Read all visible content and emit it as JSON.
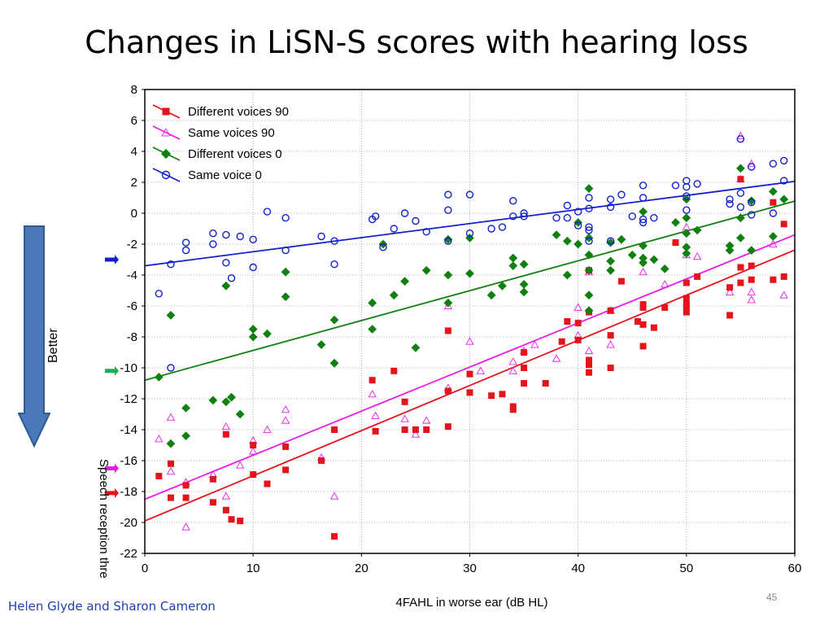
{
  "slide": {
    "title": "Changes in LiSN-S scores with hearing loss",
    "better_label": "Better",
    "authors": "Helen Glyde and Sharon Cameron",
    "slide_number": "45"
  },
  "colors": {
    "different_voices_90": "#e3141c",
    "same_voices_90": "#e81ee8",
    "different_voices_0": "#108010",
    "same_voice_0": "#1020d0",
    "better_arrow": "#4a78b8"
  },
  "side_markers": [
    {
      "name": "same-voice-0-marker",
      "y": -3,
      "color": "#1020d0"
    },
    {
      "name": "different-voices-0-marker",
      "y": -10.2,
      "color": "#22aa55"
    },
    {
      "name": "same-voices-90-marker",
      "y": -16.5,
      "color": "#e81ee8"
    },
    {
      "name": "different-voices-90-marker",
      "y": -18.1,
      "color": "#e3141c"
    }
  ],
  "chart_data": {
    "type": "scatter",
    "xlabel": "4FAHL in worse ear (dB HL)",
    "ylabel": "Speech reception thre",
    "xlim": [
      0,
      60
    ],
    "ylim": [
      -22,
      8
    ],
    "xticks": [
      0,
      10,
      20,
      30,
      40,
      50,
      60
    ],
    "yticks": [
      8,
      6,
      4,
      2,
      0,
      -2,
      -4,
      -6,
      -8,
      -10,
      -12,
      -14,
      -16,
      -18,
      -20,
      -22
    ],
    "grid": true,
    "legend_position": "top-left",
    "series": [
      {
        "name": "Different voices 90",
        "marker": "square",
        "fit": [
          -19.9,
          0.292
        ],
        "points": [
          [
            1.3,
            -17.0
          ],
          [
            2.4,
            -18.4
          ],
          [
            2.4,
            -16.2
          ],
          [
            3.8,
            -17.6
          ],
          [
            3.8,
            -18.4
          ],
          [
            6.3,
            -17.2
          ],
          [
            6.3,
            -18.7
          ],
          [
            7.5,
            -14.3
          ],
          [
            7.5,
            -19.2
          ],
          [
            8.0,
            -19.8
          ],
          [
            8.8,
            -19.9
          ],
          [
            10.0,
            -15.0
          ],
          [
            10.0,
            -16.9
          ],
          [
            11.3,
            -17.5
          ],
          [
            13.0,
            -15.1
          ],
          [
            13.0,
            -16.6
          ],
          [
            16.3,
            -16.0
          ],
          [
            17.5,
            -14.0
          ],
          [
            17.5,
            -20.9
          ],
          [
            21.0,
            -10.8
          ],
          [
            21.3,
            -14.1
          ],
          [
            23.0,
            -10.2
          ],
          [
            24.0,
            -14.0
          ],
          [
            24.0,
            -12.2
          ],
          [
            25.0,
            -14.0
          ],
          [
            26.0,
            -14.0
          ],
          [
            28.0,
            -11.5
          ],
          [
            28.0,
            -13.8
          ],
          [
            28.0,
            -7.6
          ],
          [
            30.0,
            -10.4
          ],
          [
            30.0,
            -11.6
          ],
          [
            32.0,
            -11.8
          ],
          [
            33.0,
            -11.7
          ],
          [
            34.0,
            -12.5
          ],
          [
            34.0,
            -12.7
          ],
          [
            35.0,
            -9.0
          ],
          [
            35.0,
            -10.0
          ],
          [
            35.0,
            -11.0
          ],
          [
            37.0,
            -11.0
          ],
          [
            38.5,
            -8.3
          ],
          [
            39.0,
            -7.0
          ],
          [
            40.0,
            -7.1
          ],
          [
            40.0,
            -8.2
          ],
          [
            41.0,
            -9.5
          ],
          [
            41.0,
            -9.8
          ],
          [
            41.0,
            -10.3
          ],
          [
            41.0,
            -3.7
          ],
          [
            41.0,
            -6.4
          ],
          [
            43.0,
            -7.9
          ],
          [
            43.0,
            -10.0
          ],
          [
            43.0,
            -6.3
          ],
          [
            44.0,
            -4.4
          ],
          [
            45.5,
            -7.0
          ],
          [
            46.0,
            -5.9
          ],
          [
            46.0,
            -7.2
          ],
          [
            46.0,
            -6.1
          ],
          [
            46.0,
            -8.6
          ],
          [
            47.0,
            -7.4
          ],
          [
            48.0,
            -6.1
          ],
          [
            49.0,
            -1.9
          ],
          [
            50.0,
            -4.5
          ],
          [
            50.0,
            -5.5
          ],
          [
            50.0,
            -5.9
          ],
          [
            50.0,
            -6.1
          ],
          [
            50.0,
            -6.4
          ],
          [
            51.0,
            -4.1
          ],
          [
            54.0,
            -4.8
          ],
          [
            54.0,
            -6.6
          ],
          [
            55.0,
            -3.5
          ],
          [
            55.0,
            -4.5
          ],
          [
            55.0,
            2.2
          ],
          [
            56.0,
            -3.4
          ],
          [
            56.0,
            -4.3
          ],
          [
            58.0,
            0.7
          ],
          [
            58.0,
            -4.3
          ],
          [
            59.0,
            -0.7
          ],
          [
            59.0,
            -4.1
          ]
        ]
      },
      {
        "name": "Same voices 90",
        "marker": "triangle-open",
        "fit": [
          -18.5,
          0.285
        ],
        "points": [
          [
            1.3,
            -14.6
          ],
          [
            2.4,
            -13.2
          ],
          [
            2.4,
            -16.7
          ],
          [
            3.8,
            -20.3
          ],
          [
            3.8,
            -17.4
          ],
          [
            6.3,
            -16.9
          ],
          [
            7.5,
            -13.8
          ],
          [
            7.5,
            -18.3
          ],
          [
            8.8,
            -16.3
          ],
          [
            10.0,
            -14.7
          ],
          [
            10.0,
            -15.4
          ],
          [
            11.3,
            -14.0
          ],
          [
            13.0,
            -12.7
          ],
          [
            13.0,
            -13.4
          ],
          [
            16.3,
            -15.8
          ],
          [
            17.5,
            -18.3
          ],
          [
            21.0,
            -11.7
          ],
          [
            21.3,
            -13.1
          ],
          [
            24.0,
            -13.3
          ],
          [
            25.0,
            -14.3
          ],
          [
            26.0,
            -13.4
          ],
          [
            28.0,
            -11.3
          ],
          [
            28.0,
            -6.0
          ],
          [
            30.0,
            -8.3
          ],
          [
            31.0,
            -10.2
          ],
          [
            34.0,
            -9.6
          ],
          [
            34.0,
            -10.2
          ],
          [
            35.0,
            -8.9
          ],
          [
            36.0,
            -8.5
          ],
          [
            38.0,
            -9.4
          ],
          [
            40.0,
            -7.9
          ],
          [
            40.0,
            -6.1
          ],
          [
            41.0,
            -8.9
          ],
          [
            41.0,
            -3.8
          ],
          [
            43.0,
            -6.3
          ],
          [
            43.0,
            -8.5
          ],
          [
            46.0,
            -3.8
          ],
          [
            48.0,
            -4.6
          ],
          [
            50.0,
            -0.9
          ],
          [
            50.0,
            -2.7
          ],
          [
            51.0,
            -2.8
          ],
          [
            54.0,
            -5.1
          ],
          [
            55.0,
            5.0
          ],
          [
            55.0,
            2.2
          ],
          [
            56.0,
            -5.1
          ],
          [
            56.0,
            -5.6
          ],
          [
            56.0,
            3.2
          ],
          [
            58.0,
            -2.0
          ],
          [
            59.0,
            -5.3
          ]
        ]
      },
      {
        "name": "Different voices 0",
        "marker": "diamond",
        "fit": [
          -10.8,
          0.193
        ],
        "points": [
          [
            1.3,
            -10.6
          ],
          [
            2.4,
            -14.9
          ],
          [
            2.4,
            -6.6
          ],
          [
            3.8,
            -12.6
          ],
          [
            3.8,
            -14.4
          ],
          [
            6.3,
            -12.1
          ],
          [
            7.5,
            -4.7
          ],
          [
            7.5,
            -12.2
          ],
          [
            8.0,
            -11.9
          ],
          [
            8.8,
            -13.0
          ],
          [
            10.0,
            -7.5
          ],
          [
            10.0,
            -8.0
          ],
          [
            11.3,
            -7.8
          ],
          [
            13.0,
            -3.8
          ],
          [
            13.0,
            -5.4
          ],
          [
            16.3,
            -8.5
          ],
          [
            17.5,
            -6.9
          ],
          [
            17.5,
            -9.7
          ],
          [
            21.0,
            -5.8
          ],
          [
            21.0,
            -7.5
          ],
          [
            22.0,
            -2.0
          ],
          [
            23.0,
            -5.3
          ],
          [
            24.0,
            -4.4
          ],
          [
            25.0,
            -8.7
          ],
          [
            26.0,
            -3.7
          ],
          [
            28.0,
            -1.7
          ],
          [
            28.0,
            -4.0
          ],
          [
            28.0,
            -5.8
          ],
          [
            30.0,
            -1.6
          ],
          [
            30.0,
            -3.9
          ],
          [
            32.0,
            -5.3
          ],
          [
            33.0,
            -4.7
          ],
          [
            34.0,
            -2.9
          ],
          [
            34.0,
            -3.4
          ],
          [
            35.0,
            -3.3
          ],
          [
            35.0,
            -4.6
          ],
          [
            35.0,
            -5.1
          ],
          [
            38.0,
            -1.4
          ],
          [
            39.0,
            -1.8
          ],
          [
            39.0,
            -4.0
          ],
          [
            40.0,
            -0.6
          ],
          [
            40.0,
            -2.0
          ],
          [
            41.0,
            1.6
          ],
          [
            41.0,
            -1.6
          ],
          [
            41.0,
            -2.7
          ],
          [
            41.0,
            -3.7
          ],
          [
            41.0,
            -5.3
          ],
          [
            41.0,
            -6.3
          ],
          [
            43.0,
            -1.9
          ],
          [
            43.0,
            -3.1
          ],
          [
            43.0,
            -3.7
          ],
          [
            44.0,
            -1.7
          ],
          [
            45.0,
            -2.7
          ],
          [
            46.0,
            0.1
          ],
          [
            46.0,
            -2.1
          ],
          [
            46.0,
            -2.9
          ],
          [
            46.0,
            -3.2
          ],
          [
            47.0,
            -3.0
          ],
          [
            48.0,
            -3.6
          ],
          [
            49.0,
            -0.6
          ],
          [
            50.0,
            0.9
          ],
          [
            50.0,
            -0.3
          ],
          [
            50.0,
            -1.3
          ],
          [
            50.0,
            -2.2
          ],
          [
            50.0,
            -2.6
          ],
          [
            51.0,
            -1.1
          ],
          [
            54.0,
            -2.1
          ],
          [
            54.0,
            -2.4
          ],
          [
            55.0,
            2.9
          ],
          [
            55.0,
            -0.3
          ],
          [
            55.0,
            -1.6
          ],
          [
            56.0,
            0.8
          ],
          [
            56.0,
            -2.4
          ],
          [
            58.0,
            1.4
          ],
          [
            58.0,
            -1.5
          ],
          [
            59.0,
            0.9
          ]
        ]
      },
      {
        "name": "Same voice 0",
        "marker": "circle-open",
        "fit": [
          -3.4,
          0.091
        ],
        "points": [
          [
            1.3,
            -5.2
          ],
          [
            2.4,
            -3.3
          ],
          [
            2.4,
            -10.0
          ],
          [
            3.8,
            -1.9
          ],
          [
            3.8,
            -2.4
          ],
          [
            6.3,
            -1.3
          ],
          [
            6.3,
            -2.0
          ],
          [
            7.5,
            -1.4
          ],
          [
            7.5,
            -3.2
          ],
          [
            8.0,
            -4.2
          ],
          [
            8.8,
            -1.5
          ],
          [
            10.0,
            -1.7
          ],
          [
            10.0,
            -3.5
          ],
          [
            11.3,
            0.1
          ],
          [
            13.0,
            -0.3
          ],
          [
            13.0,
            -2.4
          ],
          [
            16.3,
            -1.5
          ],
          [
            17.5,
            -1.8
          ],
          [
            17.5,
            -3.3
          ],
          [
            21.0,
            -0.4
          ],
          [
            21.3,
            -0.2
          ],
          [
            22.0,
            -2.2
          ],
          [
            23.0,
            -1.0
          ],
          [
            24.0,
            0.0
          ],
          [
            25.0,
            -0.5
          ],
          [
            26.0,
            -1.2
          ],
          [
            28.0,
            1.2
          ],
          [
            28.0,
            0.2
          ],
          [
            28.0,
            -1.8
          ],
          [
            30.0,
            1.2
          ],
          [
            30.0,
            -1.3
          ],
          [
            32.0,
            -1.0
          ],
          [
            33.0,
            -0.9
          ],
          [
            34.0,
            0.8
          ],
          [
            34.0,
            -0.2
          ],
          [
            35.0,
            0.0
          ],
          [
            35.0,
            -0.2
          ],
          [
            38.0,
            -0.3
          ],
          [
            39.0,
            0.5
          ],
          [
            39.0,
            -0.3
          ],
          [
            40.0,
            0.1
          ],
          [
            40.0,
            -0.8
          ],
          [
            41.0,
            1.0
          ],
          [
            41.0,
            0.3
          ],
          [
            41.0,
            -0.9
          ],
          [
            41.0,
            -1.1
          ],
          [
            41.0,
            -1.8
          ],
          [
            43.0,
            0.9
          ],
          [
            43.0,
            0.4
          ],
          [
            43.0,
            -1.8
          ],
          [
            44.0,
            1.2
          ],
          [
            45.0,
            -0.2
          ],
          [
            46.0,
            1.8
          ],
          [
            46.0,
            1.0
          ],
          [
            46.0,
            -0.4
          ],
          [
            46.0,
            -0.6
          ],
          [
            47.0,
            -0.3
          ],
          [
            49.0,
            1.8
          ],
          [
            50.0,
            2.1
          ],
          [
            50.0,
            1.7
          ],
          [
            50.0,
            1.1
          ],
          [
            50.0,
            0.2
          ],
          [
            51.0,
            1.9
          ],
          [
            54.0,
            0.9
          ],
          [
            54.0,
            0.6
          ],
          [
            55.0,
            4.8
          ],
          [
            55.0,
            1.3
          ],
          [
            55.0,
            0.4
          ],
          [
            56.0,
            3.0
          ],
          [
            56.0,
            0.7
          ],
          [
            56.0,
            -0.1
          ],
          [
            58.0,
            3.2
          ],
          [
            58.0,
            0.0
          ],
          [
            59.0,
            3.4
          ],
          [
            59.0,
            2.1
          ]
        ]
      }
    ]
  }
}
